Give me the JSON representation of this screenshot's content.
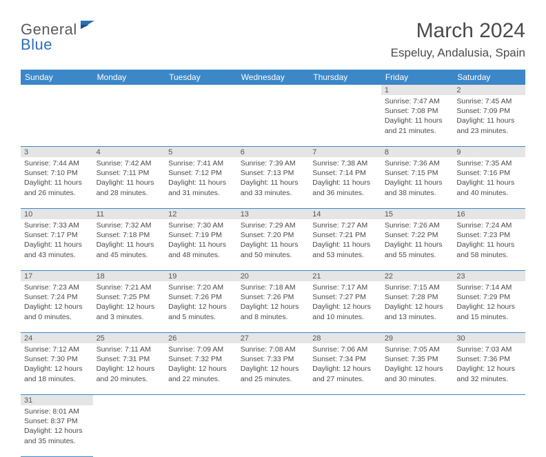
{
  "brand": {
    "part1": "General",
    "part2": "Blue"
  },
  "title": "March 2024",
  "location": "Espeluy, Andalusia, Spain",
  "headers": [
    "Sunday",
    "Monday",
    "Tuesday",
    "Wednesday",
    "Thursday",
    "Friday",
    "Saturday"
  ],
  "colors": {
    "header_bg": "#3b87c8",
    "header_fg": "#ffffff",
    "daynum_bg": "#e5e5e5",
    "cell_border": "#3b87c8",
    "text": "#4a4a4a",
    "logo_gray": "#5a5a5a",
    "logo_blue": "#2a6fb5"
  },
  "weeks": [
    [
      null,
      null,
      null,
      null,
      null,
      {
        "n": "1",
        "sr": "7:47 AM",
        "ss": "7:08 PM",
        "dl": "11 hours and 21 minutes."
      },
      {
        "n": "2",
        "sr": "7:45 AM",
        "ss": "7:09 PM",
        "dl": "11 hours and 23 minutes."
      }
    ],
    [
      {
        "n": "3",
        "sr": "7:44 AM",
        "ss": "7:10 PM",
        "dl": "11 hours and 26 minutes."
      },
      {
        "n": "4",
        "sr": "7:42 AM",
        "ss": "7:11 PM",
        "dl": "11 hours and 28 minutes."
      },
      {
        "n": "5",
        "sr": "7:41 AM",
        "ss": "7:12 PM",
        "dl": "11 hours and 31 minutes."
      },
      {
        "n": "6",
        "sr": "7:39 AM",
        "ss": "7:13 PM",
        "dl": "11 hours and 33 minutes."
      },
      {
        "n": "7",
        "sr": "7:38 AM",
        "ss": "7:14 PM",
        "dl": "11 hours and 36 minutes."
      },
      {
        "n": "8",
        "sr": "7:36 AM",
        "ss": "7:15 PM",
        "dl": "11 hours and 38 minutes."
      },
      {
        "n": "9",
        "sr": "7:35 AM",
        "ss": "7:16 PM",
        "dl": "11 hours and 40 minutes."
      }
    ],
    [
      {
        "n": "10",
        "sr": "7:33 AM",
        "ss": "7:17 PM",
        "dl": "11 hours and 43 minutes."
      },
      {
        "n": "11",
        "sr": "7:32 AM",
        "ss": "7:18 PM",
        "dl": "11 hours and 45 minutes."
      },
      {
        "n": "12",
        "sr": "7:30 AM",
        "ss": "7:19 PM",
        "dl": "11 hours and 48 minutes."
      },
      {
        "n": "13",
        "sr": "7:29 AM",
        "ss": "7:20 PM",
        "dl": "11 hours and 50 minutes."
      },
      {
        "n": "14",
        "sr": "7:27 AM",
        "ss": "7:21 PM",
        "dl": "11 hours and 53 minutes."
      },
      {
        "n": "15",
        "sr": "7:26 AM",
        "ss": "7:22 PM",
        "dl": "11 hours and 55 minutes."
      },
      {
        "n": "16",
        "sr": "7:24 AM",
        "ss": "7:23 PM",
        "dl": "11 hours and 58 minutes."
      }
    ],
    [
      {
        "n": "17",
        "sr": "7:23 AM",
        "ss": "7:24 PM",
        "dl": "12 hours and 0 minutes."
      },
      {
        "n": "18",
        "sr": "7:21 AM",
        "ss": "7:25 PM",
        "dl": "12 hours and 3 minutes."
      },
      {
        "n": "19",
        "sr": "7:20 AM",
        "ss": "7:26 PM",
        "dl": "12 hours and 5 minutes."
      },
      {
        "n": "20",
        "sr": "7:18 AM",
        "ss": "7:26 PM",
        "dl": "12 hours and 8 minutes."
      },
      {
        "n": "21",
        "sr": "7:17 AM",
        "ss": "7:27 PM",
        "dl": "12 hours and 10 minutes."
      },
      {
        "n": "22",
        "sr": "7:15 AM",
        "ss": "7:28 PM",
        "dl": "12 hours and 13 minutes."
      },
      {
        "n": "23",
        "sr": "7:14 AM",
        "ss": "7:29 PM",
        "dl": "12 hours and 15 minutes."
      }
    ],
    [
      {
        "n": "24",
        "sr": "7:12 AM",
        "ss": "7:30 PM",
        "dl": "12 hours and 18 minutes."
      },
      {
        "n": "25",
        "sr": "7:11 AM",
        "ss": "7:31 PM",
        "dl": "12 hours and 20 minutes."
      },
      {
        "n": "26",
        "sr": "7:09 AM",
        "ss": "7:32 PM",
        "dl": "12 hours and 22 minutes."
      },
      {
        "n": "27",
        "sr": "7:08 AM",
        "ss": "7:33 PM",
        "dl": "12 hours and 25 minutes."
      },
      {
        "n": "28",
        "sr": "7:06 AM",
        "ss": "7:34 PM",
        "dl": "12 hours and 27 minutes."
      },
      {
        "n": "29",
        "sr": "7:05 AM",
        "ss": "7:35 PM",
        "dl": "12 hours and 30 minutes."
      },
      {
        "n": "30",
        "sr": "7:03 AM",
        "ss": "7:36 PM",
        "dl": "12 hours and 32 minutes."
      }
    ],
    [
      {
        "n": "31",
        "sr": "8:01 AM",
        "ss": "8:37 PM",
        "dl": "12 hours and 35 minutes."
      },
      null,
      null,
      null,
      null,
      null,
      null
    ]
  ],
  "labels": {
    "sunrise": "Sunrise: ",
    "sunset": "Sunset: ",
    "daylight": "Daylight: "
  }
}
